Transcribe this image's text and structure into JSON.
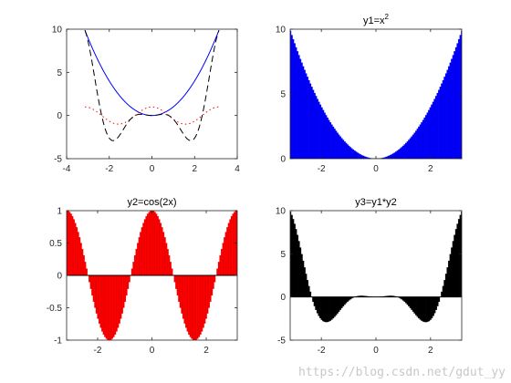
{
  "chart_data": [
    {
      "type": "line",
      "title": "",
      "xlim": [
        -4,
        4
      ],
      "ylim": [
        -5,
        10
      ],
      "xticks": [
        "-4",
        "-2",
        "0",
        "2",
        "4"
      ],
      "yticks": [
        "-5",
        "0",
        "5",
        "10"
      ],
      "grid": false,
      "x_domain": [
        -3.14159,
        3.14159
      ],
      "series": [
        {
          "name": "",
          "function": "x^2",
          "color": "#0000ff",
          "style": "solid"
        },
        {
          "name": "",
          "function": "cos(2x)",
          "color": "#ff0000",
          "style": "dotted"
        },
        {
          "name": "",
          "function": "x^2*cos(2x)",
          "color": "#000000",
          "style": "dashed"
        }
      ]
    },
    {
      "type": "bar",
      "title": "y1=x",
      "title_superscript": "2",
      "xlim": [
        -3.14159,
        3.14159
      ],
      "ylim": [
        0,
        10
      ],
      "xticks": [
        "-2",
        "0",
        "2"
      ],
      "yticks": [
        "0",
        "5",
        "10"
      ],
      "grid": false,
      "function": "x^2",
      "color": "#0000ff"
    },
    {
      "type": "bar",
      "title": "y2=cos(2x)",
      "xlim": [
        -3.14159,
        3.14159
      ],
      "ylim": [
        -1,
        1
      ],
      "xticks": [
        "-2",
        "0",
        "2"
      ],
      "yticks": [
        "-1",
        "-0.5",
        "0",
        "0.5",
        "1"
      ],
      "grid": false,
      "function": "cos(2x)",
      "color": "#ff0000"
    },
    {
      "type": "bar",
      "title": "y3=y1*y2",
      "xlim": [
        -3.14159,
        3.14159
      ],
      "ylim": [
        -5,
        10
      ],
      "xticks": [
        "-2",
        "0",
        "2"
      ],
      "yticks": [
        "-5",
        "0",
        "5",
        "10"
      ],
      "grid": false,
      "function": "x^2*cos(2x)",
      "color": "#000000"
    }
  ],
  "watermark": "https://blog.csdn.net/gdut_yy"
}
